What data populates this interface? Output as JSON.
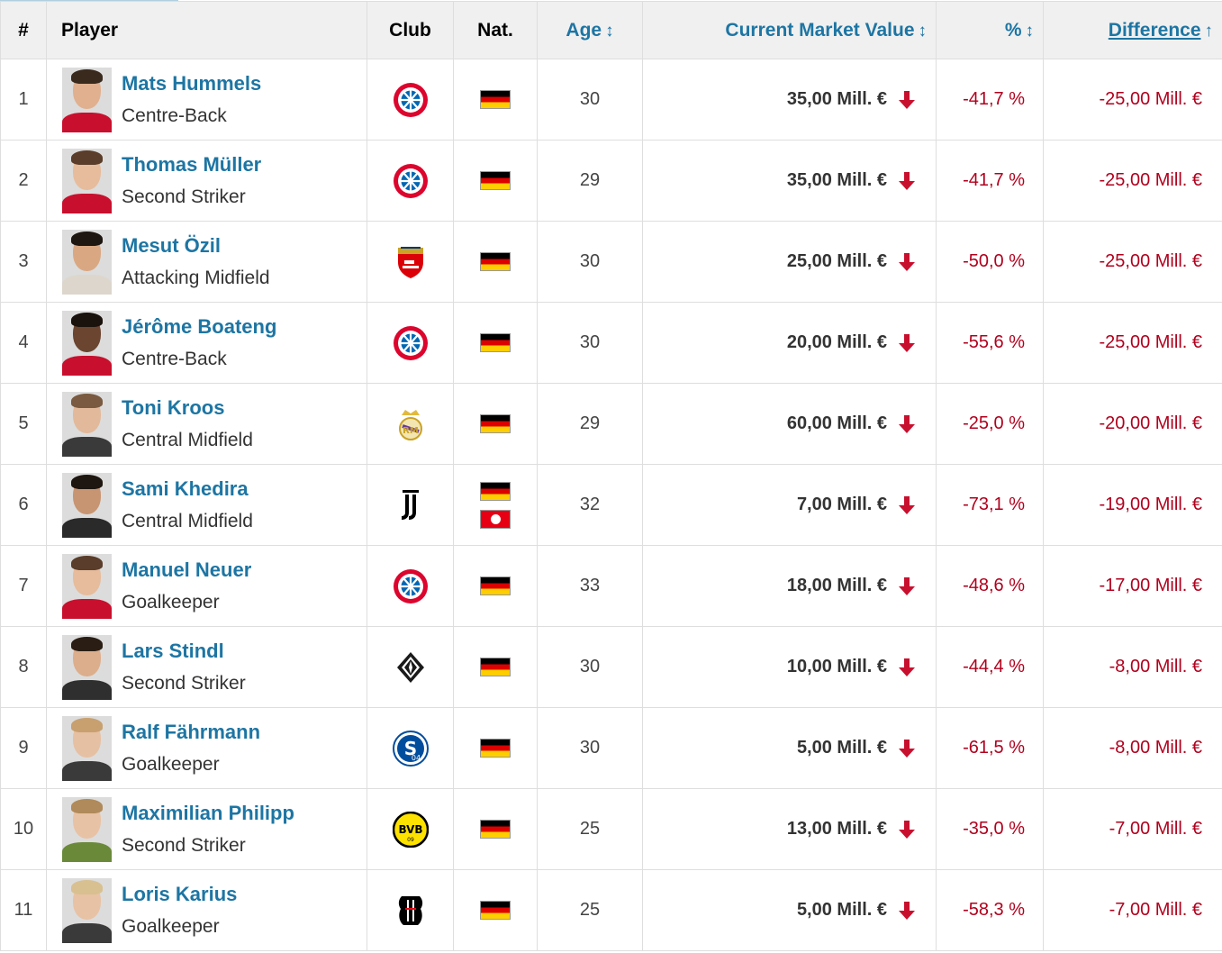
{
  "headers": {
    "num": "#",
    "player": "Player",
    "club": "Club",
    "nat": "Nat.",
    "age": "Age",
    "value": "Current Market Value",
    "pct": "%",
    "diff": "Difference"
  },
  "colors": {
    "link": "#1d75a3",
    "negative": "#b1001d",
    "header_bg": "#f0f0f0"
  },
  "rows": [
    {
      "num": "1",
      "name": "Mats Hummels",
      "position": "Centre-Back",
      "club": "bayern",
      "nat": [
        "germany"
      ],
      "age": "30",
      "value": "35,00 Mill. €",
      "pct": "-41,7 %",
      "diff": "-25,00 Mill. €",
      "skin": "#e0b08f",
      "hair": "#3a2a1e",
      "shirt": "#c8102e"
    },
    {
      "num": "2",
      "name": "Thomas Müller",
      "position": "Second Striker",
      "club": "bayern",
      "nat": [
        "germany"
      ],
      "age": "29",
      "value": "35,00 Mill. €",
      "pct": "-41,7 %",
      "diff": "-25,00 Mill. €",
      "skin": "#e6bc9c",
      "hair": "#5a3d2a",
      "shirt": "#c8102e"
    },
    {
      "num": "3",
      "name": "Mesut Özil",
      "position": "Attacking Midfield",
      "club": "arsenal",
      "nat": [
        "germany"
      ],
      "age": "30",
      "value": "25,00 Mill. €",
      "pct": "-50,0 %",
      "diff": "-25,00 Mill. €",
      "skin": "#d9a882",
      "hair": "#1e1610",
      "shirt": "#ddd6cc"
    },
    {
      "num": "4",
      "name": "Jérôme Boateng",
      "position": "Centre-Back",
      "club": "bayern",
      "nat": [
        "germany"
      ],
      "age": "30",
      "value": "20,00 Mill. €",
      "pct": "-55,6 %",
      "diff": "-25,00 Mill. €",
      "skin": "#6b4530",
      "hair": "#1a120c",
      "shirt": "#c8102e"
    },
    {
      "num": "5",
      "name": "Toni Kroos",
      "position": "Central Midfield",
      "club": "real-madrid",
      "nat": [
        "germany"
      ],
      "age": "29",
      "value": "60,00 Mill. €",
      "pct": "-25,0 %",
      "diff": "-20,00 Mill. €",
      "skin": "#e2b99a",
      "hair": "#7a5a40",
      "shirt": "#3a3a3a"
    },
    {
      "num": "6",
      "name": "Sami Khedira",
      "position": "Central Midfield",
      "club": "juventus",
      "nat": [
        "germany",
        "tunisia"
      ],
      "age": "32",
      "value": "7,00 Mill. €",
      "pct": "-73,1 %",
      "diff": "-19,00 Mill. €",
      "skin": "#c79572",
      "hair": "#1e1610",
      "shirt": "#2a2a2a"
    },
    {
      "num": "7",
      "name": "Manuel Neuer",
      "position": "Goalkeeper",
      "club": "bayern",
      "nat": [
        "germany"
      ],
      "age": "33",
      "value": "18,00 Mill. €",
      "pct": "-48,6 %",
      "diff": "-17,00 Mill. €",
      "skin": "#e6bc9c",
      "hair": "#5a3d2a",
      "shirt": "#c8102e"
    },
    {
      "num": "8",
      "name": "Lars Stindl",
      "position": "Second Striker",
      "club": "gladbach",
      "nat": [
        "germany"
      ],
      "age": "30",
      "value": "10,00 Mill. €",
      "pct": "-44,4 %",
      "diff": "-8,00 Mill. €",
      "skin": "#dcae8c",
      "hair": "#2a1e14",
      "shirt": "#2f2f2f"
    },
    {
      "num": "9",
      "name": "Ralf Fährmann",
      "position": "Goalkeeper",
      "club": "schalke",
      "nat": [
        "germany"
      ],
      "age": "30",
      "value": "5,00 Mill. €",
      "pct": "-61,5 %",
      "diff": "-8,00 Mill. €",
      "skin": "#e6c0a2",
      "hair": "#c8a070",
      "shirt": "#3a3a3a"
    },
    {
      "num": "10",
      "name": "Maximilian Philipp",
      "position": "Second Striker",
      "club": "dortmund",
      "nat": [
        "germany"
      ],
      "age": "25",
      "value": "13,00 Mill. €",
      "pct": "-35,0 %",
      "diff": "-7,00 Mill. €",
      "skin": "#e8c2a4",
      "hair": "#b08a5a",
      "shirt": "#6a8a3a"
    },
    {
      "num": "11",
      "name": "Loris Karius",
      "position": "Goalkeeper",
      "club": "besiktas",
      "nat": [
        "germany"
      ],
      "age": "25",
      "value": "5,00 Mill. €",
      "pct": "-58,3 %",
      "diff": "-7,00 Mill. €",
      "skin": "#e8c2a4",
      "hair": "#d8c090",
      "shirt": "#3a3a3a"
    }
  ]
}
